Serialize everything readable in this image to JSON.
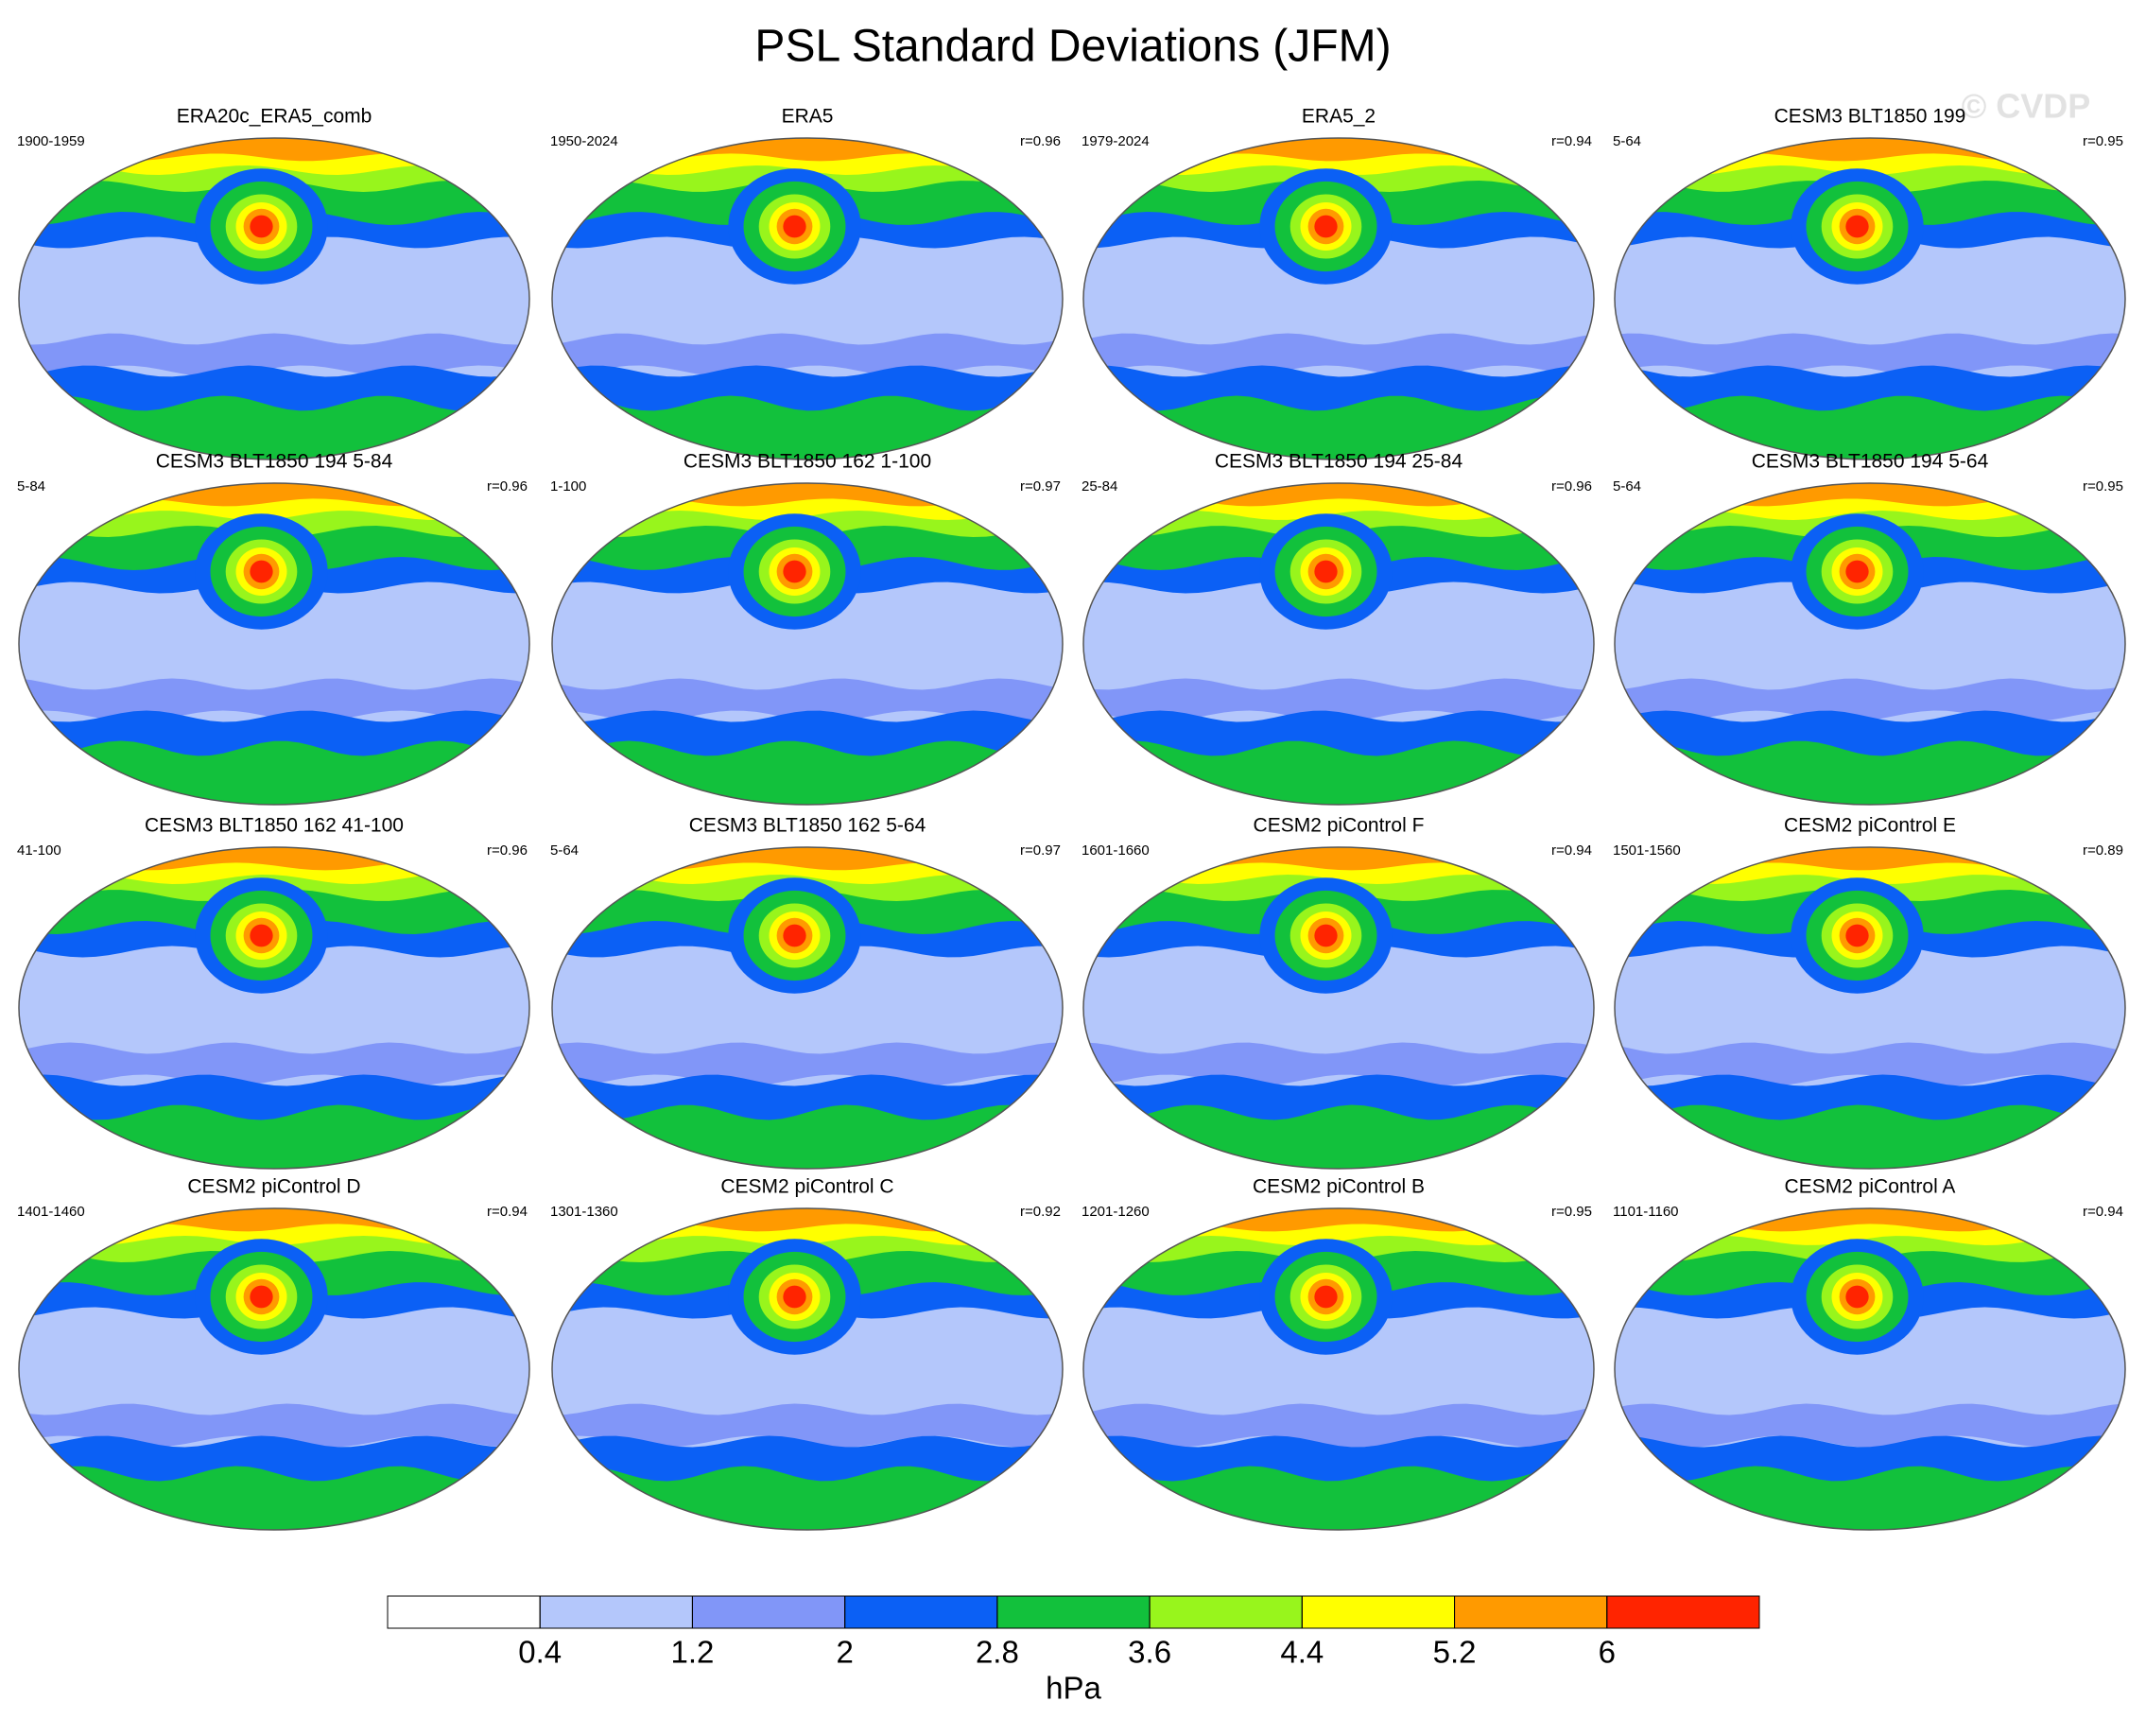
{
  "title": "PSL Standard Deviations (JFM)",
  "watermark": "© CVDP",
  "panels": [
    {
      "title": "ERA20c_ERA5_comb",
      "years": "1900-1959"
    },
    {
      "title": "ERA5",
      "years": "1950-2024",
      "r": "r=0.96"
    },
    {
      "title": "ERA5_2",
      "years": "1979-2024",
      "r": "r=0.94"
    },
    {
      "title": "CESM3 BLT1850 199",
      "years": "5-64",
      "r": "r=0.95"
    },
    {
      "title": "CESM3 BLT1850 194 5-84",
      "years": "5-84",
      "r": "r=0.96"
    },
    {
      "title": "CESM3 BLT1850 162 1-100",
      "years": "1-100",
      "r": "r=0.97"
    },
    {
      "title": "CESM3 BLT1850 194 25-84",
      "years": "25-84",
      "r": "r=0.96"
    },
    {
      "title": "CESM3 BLT1850 194 5-64",
      "years": "5-64",
      "r": "r=0.95"
    },
    {
      "title": "CESM3 BLT1850 162 41-100",
      "years": "41-100",
      "r": "r=0.96"
    },
    {
      "title": "CESM3 BLT1850 162 5-64",
      "years": "5-64",
      "r": "r=0.97"
    },
    {
      "title": "CESM2 piControl F",
      "years": "1601-1660",
      "r": "r=0.94"
    },
    {
      "title": "CESM2 piControl E",
      "years": "1501-1560",
      "r": "r=0.89"
    },
    {
      "title": "CESM2 piControl D",
      "years": "1401-1460",
      "r": "r=0.94"
    },
    {
      "title": "CESM2 piControl C",
      "years": "1301-1360",
      "r": "r=0.92"
    },
    {
      "title": "CESM2 piControl B",
      "years": "1201-1260",
      "r": "r=0.95"
    },
    {
      "title": "CESM2 piControl A",
      "years": "1101-1160",
      "r": "r=0.94"
    }
  ],
  "colorbar": {
    "colors": [
      "#ffffff",
      "#b4c7fb",
      "#8196f8",
      "#0b60f5",
      "#12c13c",
      "#98f51c",
      "#ffff00",
      "#ff9a00",
      "#ff2400"
    ],
    "ticks": [
      0.4,
      1.2,
      2,
      2.8,
      3.6,
      4.4,
      5.2,
      6
    ],
    "unit": "hPa"
  }
}
